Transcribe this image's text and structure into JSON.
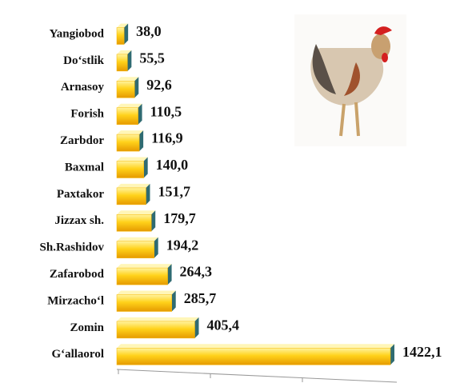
{
  "chart_data": {
    "type": "bar",
    "orientation": "horizontal",
    "categories": [
      "Yangiobod",
      "Do‘stlik",
      "Arnasoy",
      "Forish",
      "Zarbdor",
      "Baxmal",
      "Paxtakor",
      "Jizzax sh.",
      "Sh.Rashidov",
      "Zafarobod",
      "Mirzacho‘l",
      "Zomin",
      "G‘allaorol"
    ],
    "values": [
      38.0,
      55.5,
      92.6,
      110.5,
      116.9,
      140.0,
      151.7,
      179.7,
      194.2,
      264.3,
      285.7,
      405.4,
      1422.1
    ],
    "value_labels": [
      "38,0",
      "55,5",
      "92,6",
      "110,5",
      "116,9",
      "140,0",
      "151,7",
      "179,7",
      "194,2",
      "264,3",
      "285,7",
      "405,4",
      "1422,1"
    ],
    "color": "#f7b500"
  }
}
